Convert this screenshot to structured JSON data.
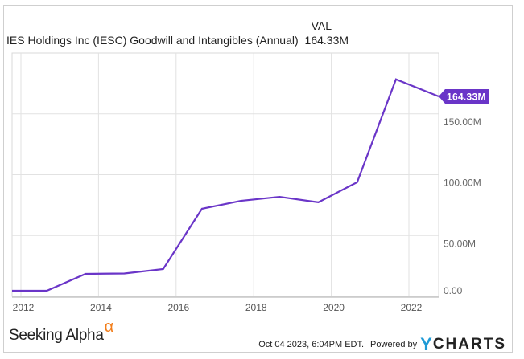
{
  "header": {
    "val_label": "VAL",
    "series_title": "IES Holdings Inc (IESC) Goodwill and Intangibles (Annual)",
    "series_value": "164.33M"
  },
  "footer": {
    "brand": "Seeking Alpha",
    "brand_symbol": "α",
    "timestamp": "Oct 04 2023, 6:04PM EDT.",
    "powered_by": "Powered by",
    "provider_y": "Y",
    "provider_rest": "CHARTS"
  },
  "colors": {
    "line": "#6a35c8",
    "badge": "#6a35c8",
    "grid": "#e2e2e2",
    "brand_alpha": "#f27d1a",
    "ycharts_y": "#1e9ad6"
  },
  "chart_data": {
    "type": "line",
    "title": "IES Holdings Inc (IESC) Goodwill and Intangibles (Annual)",
    "xlabel": "",
    "ylabel": "",
    "x_tick_labels": [
      "2012",
      "2014",
      "2016",
      "2018",
      "2020",
      "2022"
    ],
    "y_tick_labels": [
      "0.00",
      "50.00M",
      "100.00M",
      "150.00M"
    ],
    "ylim": [
      0,
      200
    ],
    "y_unit": "M",
    "grid": true,
    "legend": "none",
    "last_value_label": "164.33M",
    "series": [
      {
        "name": "Goodwill and Intangibles (Annual)",
        "x": [
          "2011-09",
          "2012-09",
          "2013-09",
          "2014-09",
          "2015-09",
          "2016-09",
          "2017-09",
          "2018-09",
          "2019-09",
          "2020-09",
          "2021-09",
          "2022-09"
        ],
        "values": [
          4.6,
          4.6,
          18.5,
          18.8,
          22.5,
          72.0,
          78.5,
          81.8,
          77.3,
          93.8,
          178.4,
          164.33
        ]
      }
    ]
  }
}
